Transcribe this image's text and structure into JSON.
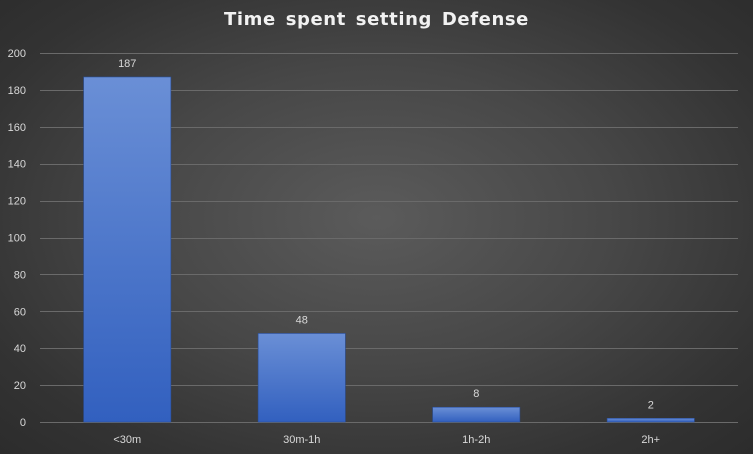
{
  "chart_data": {
    "type": "bar",
    "title": "Time spent setting Defense",
    "xlabel": "",
    "ylabel": "",
    "categories": [
      "<30m",
      "30m-1h",
      "1h-2h",
      "2h+"
    ],
    "values": [
      187,
      48,
      8,
      2
    ],
    "ylim": [
      0,
      200
    ],
    "yticks": [
      0,
      20,
      40,
      60,
      80,
      100,
      120,
      140,
      160,
      180,
      200
    ],
    "data_labels": true,
    "grid": true,
    "legend": "none",
    "colors": {
      "bar_top": "#6a8fd6",
      "bar_bottom": "#3260bf",
      "bar_edge": "#2a4f9c",
      "gridline": "#6a6a6a",
      "text": "#d9d9d9"
    }
  }
}
